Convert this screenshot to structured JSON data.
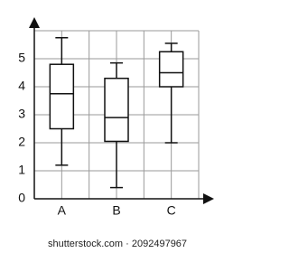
{
  "chart_data": {
    "type": "box",
    "categories": [
      "A",
      "B",
      "C"
    ],
    "boxes": [
      {
        "low": 1.2,
        "q1": 2.5,
        "median": 3.75,
        "q3": 4.8,
        "high": 5.75
      },
      {
        "low": 0.4,
        "q1": 2.05,
        "median": 2.9,
        "q3": 4.3,
        "high": 4.85
      },
      {
        "low": 2.0,
        "q1": 4.0,
        "median": 4.5,
        "q3": 5.25,
        "high": 5.55
      }
    ],
    "color": "#111111",
    "ylim": [
      0,
      6
    ],
    "yticks": [
      0,
      1,
      2,
      3,
      4,
      5
    ],
    "grid": true,
    "watermark": "shutterstock.com · 2092497967"
  }
}
